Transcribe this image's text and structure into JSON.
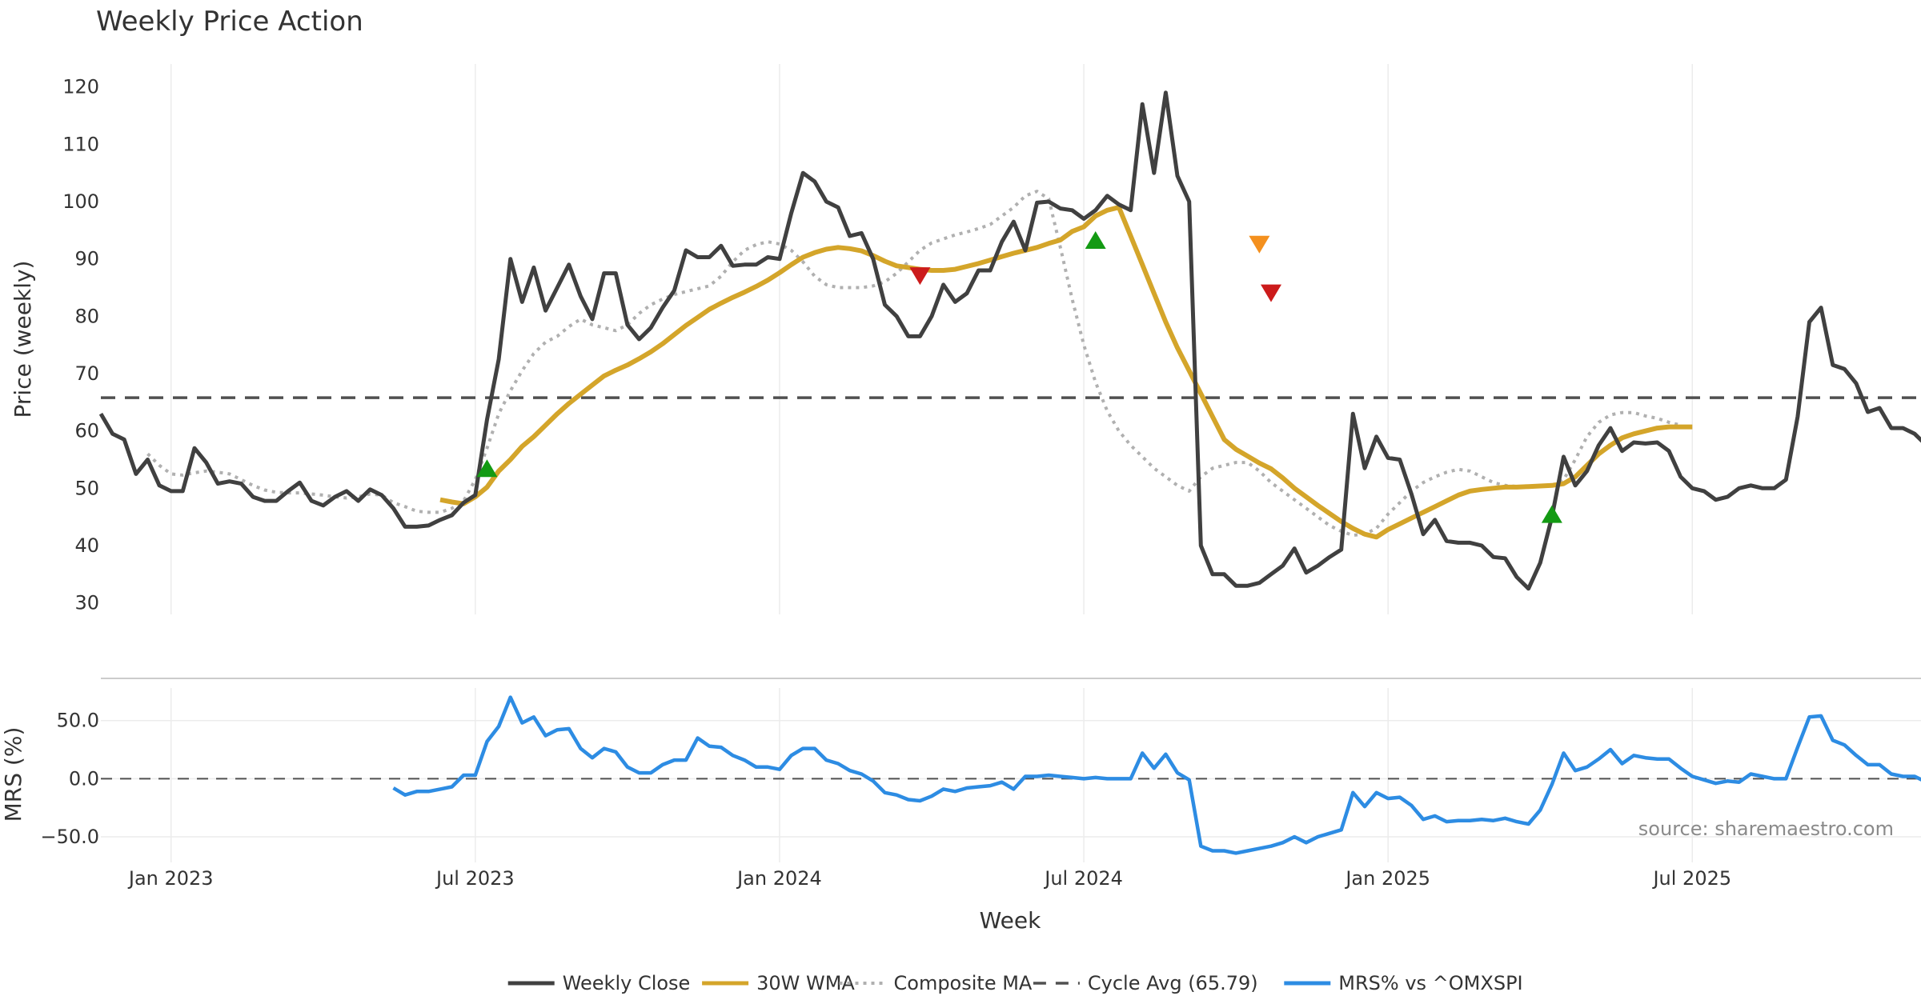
{
  "chart_data": {
    "type": "line",
    "title": "Weekly Price Action",
    "xlabel": "Week",
    "x_tick_labels": [
      "Jan 2023",
      "Jul 2023",
      "Jan 2024",
      "Jul 2024",
      "Jan 2025",
      "Jul 2025"
    ],
    "x_tick_weeks": [
      6,
      32,
      58,
      84,
      110,
      136
    ],
    "x_range_weeks": [
      0,
      155
    ],
    "grid": true,
    "legend_position": "bottom-center",
    "source": "source: sharemaestro.com",
    "price_panel": {
      "ylabel": "Price (weekly)",
      "ylim": [
        28,
        124
      ],
      "y_ticks": [
        "30",
        "40",
        "50",
        "60",
        "70",
        "80",
        "90",
        "100",
        "110",
        "120"
      ],
      "y_tick_values": [
        30,
        40,
        50,
        60,
        70,
        80,
        90,
        100,
        110,
        120
      ],
      "reference_line": {
        "name": "Cycle Avg (65.79)",
        "value": 65.79
      },
      "series": [
        {
          "name": "Weekly Close",
          "color": "#404040",
          "style": "solid",
          "start_week": 0,
          "values": [
            63,
            59.5,
            58.5,
            52.5,
            55,
            50.5,
            49.5,
            49.5,
            57,
            54.5,
            50.8,
            51.2,
            50.8,
            48.5,
            47.8,
            47.8,
            49.5,
            51,
            47.8,
            47,
            48.5,
            49.5,
            47.8,
            49.8,
            48.8,
            46.5,
            43.3,
            43.3,
            43.5,
            44.5,
            45.3,
            47.5,
            48.8,
            62,
            72.5,
            90,
            82.5,
            88.5,
            81,
            85,
            89,
            83.5,
            79.5,
            87.5,
            87.5,
            78.5,
            76,
            78,
            81.5,
            84.5,
            91.5,
            90.3,
            90.3,
            92.3,
            88.8,
            89,
            89,
            90.3,
            90,
            98,
            105,
            103.5,
            100,
            99,
            94,
            94.5,
            90,
            82,
            80,
            76.5,
            76.5,
            80,
            85.5,
            82.5,
            84,
            88,
            88,
            93,
            96.5,
            91.5,
            99.8,
            100,
            98.8,
            98.5,
            97,
            98.5,
            101,
            99.5,
            98.5,
            117,
            105,
            119,
            104.5,
            100,
            40,
            35,
            35,
            33,
            33,
            33.5,
            35,
            36.5,
            39.5,
            35.3,
            36.5,
            38,
            39.3,
            63,
            53.5,
            59,
            55.3,
            55,
            49,
            42,
            44.5,
            40.8,
            40.5,
            40.5,
            40,
            38,
            37.8,
            34.5,
            32.5,
            37,
            45,
            55.5,
            50.5,
            53,
            57.5,
            60.5,
            56.5,
            58,
            57.8,
            58,
            56.5,
            52,
            50,
            49.5,
            48,
            48.5,
            50,
            50.5,
            50,
            50,
            51.5,
            62.5,
            79,
            81.5,
            71.5,
            70.8,
            68.3,
            63.3,
            64,
            60.5,
            60.5,
            59.5,
            57.5
          ]
        },
        {
          "name": "30W WMA",
          "color": "#d4a52a",
          "style": "solid",
          "start_week": 29,
          "values": [
            48,
            47.6,
            47.3,
            48.5,
            50.2,
            53,
            55,
            57.3,
            59,
            61,
            63,
            64.8,
            66.4,
            68,
            69.6,
            70.6,
            71.5,
            72.6,
            73.8,
            75.2,
            76.8,
            78.4,
            79.8,
            81.2,
            82.3,
            83.3,
            84.2,
            85.2,
            86.3,
            87.6,
            89,
            90.3,
            91.1,
            91.7,
            92,
            91.8,
            91.4,
            90.6,
            89.6,
            88.8,
            88.5,
            88.2,
            88,
            88,
            88.2,
            88.7,
            89.2,
            89.8,
            90.4,
            91,
            91.5,
            92,
            92.7,
            93.3,
            94.8,
            95.6,
            97.5,
            98.5,
            99,
            94,
            89,
            84,
            79,
            74.5,
            70.5,
            66.5,
            62.5,
            58.5,
            56.8,
            55.6,
            54.4,
            53.4,
            51.8,
            50,
            48.5,
            47,
            45.6,
            44.2,
            43,
            42,
            41.5,
            42.8,
            43.8,
            44.8,
            45.8,
            46.8,
            47.8,
            48.8,
            49.5,
            49.8,
            50,
            50.2,
            50.2,
            50.3,
            50.4,
            50.5,
            50.8,
            52,
            54,
            56,
            57.5,
            58.8,
            59.5,
            60,
            60.5,
            60.7,
            60.7,
            60.7
          ]
        },
        {
          "name": "Composite MA",
          "color": "#b0b0b0",
          "style": "dotted",
          "start_week": 4,
          "values": [
            56,
            54,
            52.5,
            52.3,
            52.7,
            53,
            52.8,
            52.5,
            51.5,
            50.5,
            49.7,
            49.3,
            49.2,
            49.2,
            49,
            48.8,
            48.5,
            48.3,
            48.5,
            49,
            48.8,
            47.5,
            46.8,
            46,
            45.8,
            45.8,
            46.5,
            47.8,
            51.5,
            57,
            63,
            67,
            70.5,
            73.5,
            75.5,
            76.5,
            78.2,
            79.5,
            78.5,
            78,
            77.5,
            78.5,
            80.5,
            82,
            83,
            83.8,
            84.3,
            84.8,
            85.3,
            87,
            89.5,
            91.5,
            92.5,
            93,
            92.6,
            91.5,
            89.5,
            87,
            85.5,
            85,
            85,
            85,
            85.3,
            86,
            87.5,
            89.5,
            91.5,
            92.8,
            93.5,
            94.2,
            94.7,
            95.3,
            96,
            97.5,
            99,
            101,
            101.8,
            100.5,
            92,
            83,
            75,
            68.5,
            63.5,
            60,
            57.5,
            55.5,
            53.5,
            52,
            50.5,
            49.5,
            52,
            53.5,
            54,
            54.5,
            54.5,
            53,
            51,
            49.5,
            48,
            46.5,
            45,
            43.5,
            42.5,
            41.8,
            42,
            43,
            45.5,
            47.5,
            49.5,
            51,
            52,
            52.8,
            53.3,
            53,
            52,
            51,
            50.5,
            50.3,
            50.3,
            50.5,
            50.5,
            51.5,
            55,
            59,
            61.5,
            62.8,
            63.2,
            63.2,
            62.6,
            62.2,
            61.5,
            61
          ]
        }
      ],
      "signals": [
        {
          "type": "buy",
          "week": 33,
          "value": 53.5,
          "color": "#139a13"
        },
        {
          "type": "sell",
          "week": 70,
          "value": 87,
          "color": "#cc1b1b"
        },
        {
          "type": "buy",
          "week": 85,
          "value": 93.3,
          "color": "#139a13"
        },
        {
          "type": "sell-warning",
          "week": 99,
          "value": 92.5,
          "color": "#f4901e"
        },
        {
          "type": "sell",
          "week": 100,
          "value": 84,
          "color": "#cc1b1b"
        },
        {
          "type": "buy",
          "week": 124,
          "value": 45.5,
          "color": "#139a13"
        }
      ]
    },
    "mrs_panel": {
      "ylabel": "MRS (%)",
      "ylim": [
        -72,
        78
      ],
      "y_ticks": [
        "−50.0",
        "0.0",
        "50.0"
      ],
      "y_tick_values": [
        -50,
        0,
        50
      ],
      "reference_line": {
        "value": 0
      },
      "series": [
        {
          "name": "MRS% vs ^OMXSPI",
          "color": "#2d8ce3",
          "style": "solid",
          "start_week": 25,
          "values": [
            -8,
            -14,
            -11,
            -11,
            -9,
            -7,
            3,
            3,
            32,
            45,
            70,
            48,
            53,
            37,
            42,
            43,
            26,
            18,
            26,
            23,
            10,
            5,
            5,
            12,
            16,
            16,
            35,
            28,
            27,
            20,
            16,
            10,
            10,
            8,
            20,
            26,
            26,
            16,
            13,
            7,
            4,
            -2,
            -12,
            -14,
            -18,
            -19,
            -15,
            -9,
            -11,
            -8,
            -7,
            -6,
            -3,
            -9,
            2,
            2,
            3,
            2,
            1,
            0,
            1,
            0,
            0,
            0,
            22,
            9,
            21,
            5,
            -1,
            -58,
            -62,
            -62,
            -64,
            -62,
            -60,
            -58,
            -55,
            -50,
            -55,
            -50,
            -47,
            -44,
            -12,
            -24,
            -12,
            -17,
            -16,
            -23,
            -35,
            -32,
            -37,
            -36,
            -36,
            -35,
            -36,
            -34,
            -37,
            -39,
            -27,
            -5,
            22,
            7,
            10,
            17,
            25,
            13,
            20,
            18,
            17,
            17,
            9,
            2,
            -1,
            -4,
            -2,
            -3,
            4,
            2,
            0,
            0,
            27,
            53,
            54,
            33,
            29,
            20,
            12,
            12,
            4,
            2,
            2,
            -3
          ]
        }
      ]
    }
  },
  "legend": [
    {
      "label": "Weekly Close",
      "color": "#404040",
      "style": "solid"
    },
    {
      "label": "30W WMA",
      "color": "#d4a52a",
      "style": "solid"
    },
    {
      "label": "Composite MA",
      "color": "#b0b0b0",
      "style": "dotted"
    },
    {
      "label": "Cycle Avg (65.79)",
      "color": "#505050",
      "style": "dashed"
    },
    {
      "label": "MRS% vs ^OMXSPI",
      "color": "#2d8ce3",
      "style": "solid"
    }
  ]
}
